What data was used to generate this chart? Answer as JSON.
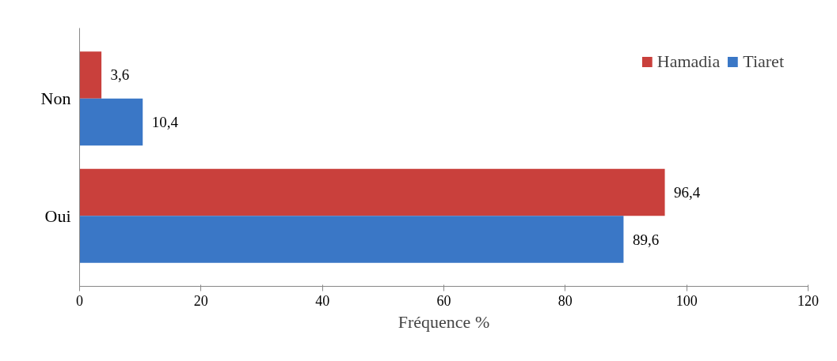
{
  "chart_data": {
    "type": "bar",
    "orientation": "horizontal",
    "xlabel": "Fréquence %",
    "categories": [
      "Non",
      "Oui"
    ],
    "series": [
      {
        "name": "Hamadia",
        "color": "#c9403c",
        "values": [
          3.6,
          96.4
        ],
        "value_labels": [
          "3,6",
          "96,4"
        ]
      },
      {
        "name": "Tiaret",
        "color": "#3a77c6",
        "values": [
          10.4,
          89.6
        ],
        "value_labels": [
          "10,4",
          "89,6"
        ]
      }
    ],
    "xlim": [
      0,
      120
    ],
    "xticks": [
      0,
      20,
      40,
      60,
      80,
      100,
      120
    ],
    "grid": false,
    "legend": "top right"
  }
}
